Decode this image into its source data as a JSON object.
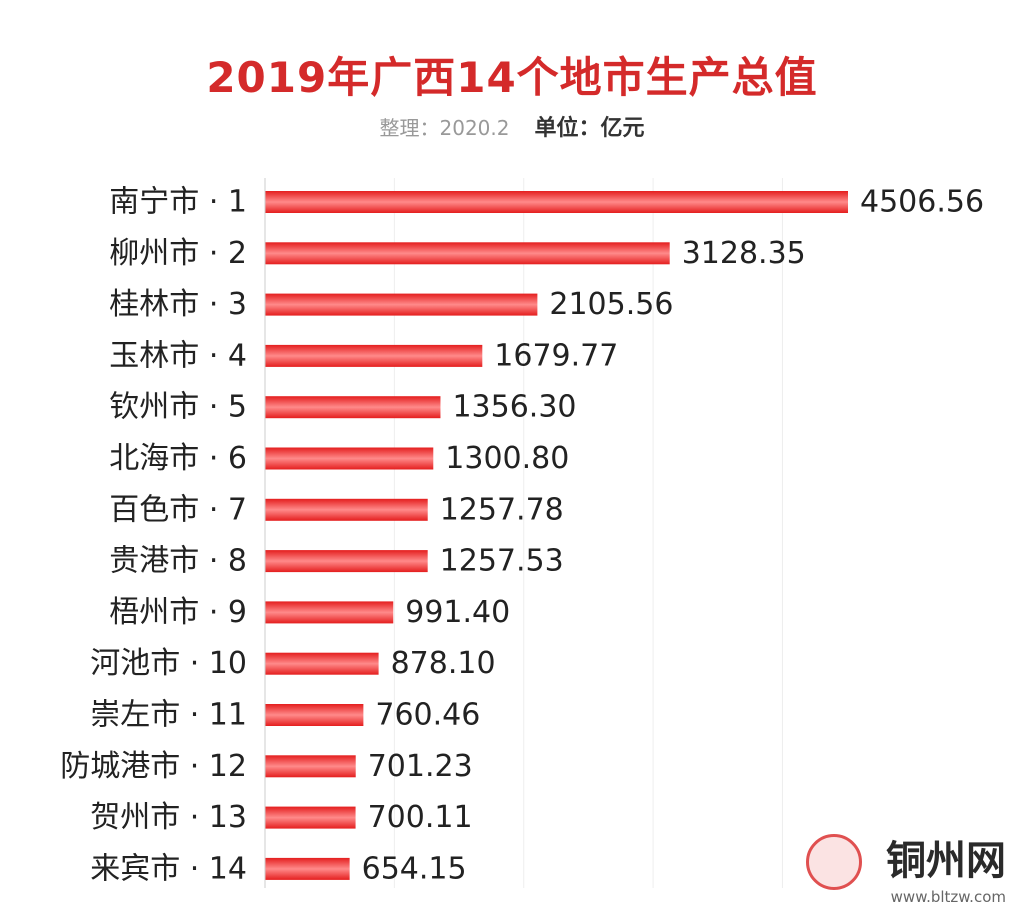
{
  "header": {
    "title": "2019年广西14个地市生产总值",
    "note": "整理：2020.2",
    "unit": "单位：亿元"
  },
  "colors": {
    "bar": "#e41e1e",
    "bar_highlight": "#ff8a8a",
    "title": "#d42a2a"
  },
  "watermark": {
    "text": "铜州网",
    "url": "www.bltzw.com"
  },
  "chart_data": {
    "type": "bar",
    "orientation": "horizontal",
    "categories": [
      "南宁市 · 1",
      "柳州市 · 2",
      "桂林市 · 3",
      "玉林市 · 4",
      "钦州市 · 5",
      "北海市 · 6",
      "百色市 · 7",
      "贵港市 · 8",
      "梧州市 · 9",
      "河池市 · 10",
      "崇左市 · 11",
      "防城港市 · 12",
      "贺州市 · 13",
      "来宾市 · 14"
    ],
    "values": [
      4506.56,
      3128.35,
      2105.56,
      1679.77,
      1356.3,
      1300.8,
      1257.78,
      1257.53,
      991.4,
      878.1,
      760.46,
      701.23,
      700.11,
      654.15
    ],
    "value_labels": [
      "4506.56",
      "3128.35",
      "2105.56",
      "1679.77",
      "1356.30",
      "1300.80",
      "1257.78",
      "1257.53",
      "991.40",
      "878.10",
      "760.46",
      "701.23",
      "700.11",
      "654.15"
    ],
    "xlim": [
      0,
      4506.56
    ],
    "grid": true,
    "legend": "none"
  }
}
